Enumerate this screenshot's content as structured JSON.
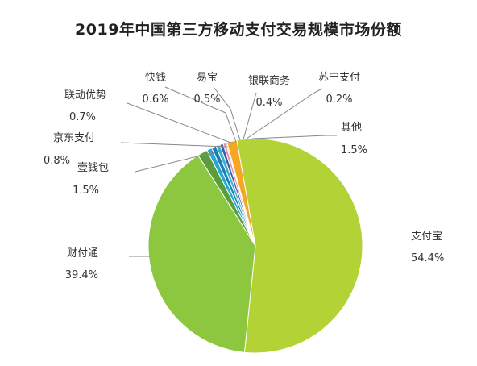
{
  "chart_data": {
    "type": "pie",
    "title": "2019年中国第三方移动支付交易规模市场份额",
    "slices": [
      {
        "name": "支付宝",
        "value": 54.4,
        "label": "54.4%",
        "color": "#b2d235"
      },
      {
        "name": "财付通",
        "value": 39.4,
        "label": "39.4%",
        "color": "#8dc63f"
      },
      {
        "name": "壹钱包",
        "value": 1.5,
        "label": "1.5%",
        "color": "#5a9e3c"
      },
      {
        "name": "京东支付",
        "value": 0.8,
        "label": "0.8%",
        "color": "#2aa6d6"
      },
      {
        "name": "联动优势",
        "value": 0.7,
        "label": "0.7%",
        "color": "#1a7fb5"
      },
      {
        "name": "快钱",
        "value": 0.6,
        "label": "0.6%",
        "color": "#3bb3c9"
      },
      {
        "name": "易宝",
        "value": 0.5,
        "label": "0.5%",
        "color": "#3b5fb0"
      },
      {
        "name": "银联商务",
        "value": 0.4,
        "label": "0.4%",
        "color": "#e98aa6"
      },
      {
        "name": "苏宁支付",
        "value": 0.2,
        "label": "0.2%",
        "color": "#c8c8c8"
      },
      {
        "name": "其他",
        "value": 1.5,
        "label": "1.5%",
        "color": "#f5a623"
      }
    ]
  }
}
